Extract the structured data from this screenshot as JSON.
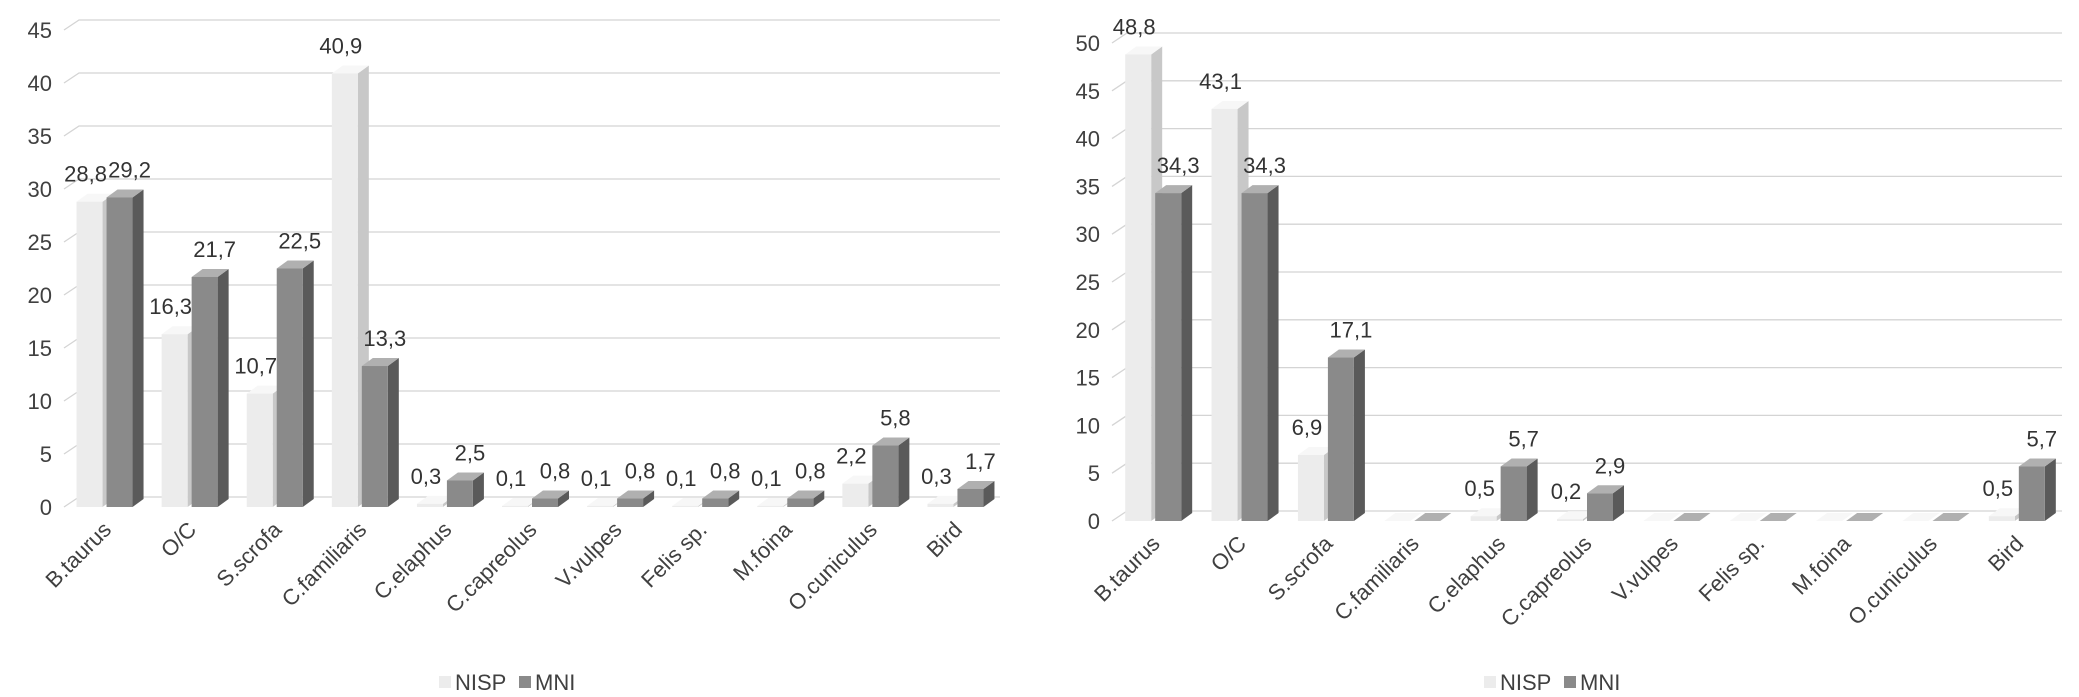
{
  "colors": {
    "nisp_front": "#ececec",
    "nisp_side": "#c8c8c8",
    "nisp_top": "#f7f7f7",
    "mni_front": "#8a8a8a",
    "mni_side": "#5a5a5a",
    "mni_top": "#b0b0b0",
    "grid": "#d4d4d4",
    "axis_text": "#404040"
  },
  "legend": {
    "nisp": "NISP",
    "mni": "MNI"
  },
  "chart_data": [
    {
      "type": "bar",
      "categories": [
        "B.taurus",
        "O/C",
        "S.scrofa",
        "C.familiaris",
        "C.elaphus",
        "C.capreolus",
        "V.vulpes",
        "Felis sp.",
        "M.foina",
        "O.cuniculus",
        "Bird"
      ],
      "series": [
        {
          "name": "NISP",
          "values": [
            28.8,
            16.3,
            10.7,
            40.9,
            0.3,
            0.1,
            0.1,
            0.1,
            0.1,
            2.2,
            0.3
          ],
          "labels": [
            "28,8",
            "16,3",
            "10,7",
            "40,9",
            "0,3",
            "0,1",
            "0,1",
            "0,1",
            "0,1",
            "2,2",
            "0,3"
          ]
        },
        {
          "name": "MNI",
          "values": [
            29.2,
            21.7,
            22.5,
            13.3,
            2.5,
            0.8,
            0.8,
            0.8,
            0.8,
            5.8,
            1.7
          ],
          "labels": [
            "29,2",
            "21,7",
            "22,5",
            "13,3",
            "2,5",
            "0,8",
            "0,8",
            "0,8",
            "0,8",
            "5,8",
            "1,7"
          ]
        }
      ],
      "ylim": [
        0,
        45
      ],
      "yticks": [
        0,
        5,
        10,
        15,
        20,
        25,
        30,
        35,
        40,
        45
      ],
      "grid": true,
      "legend_position": "bottom"
    },
    {
      "type": "bar",
      "categories": [
        "B.taurus",
        "O/C",
        "S.scrofa",
        "C.familiaris",
        "C.elaphus",
        "C.capreolus",
        "V.vulpes",
        "Felis sp.",
        "M.foina",
        "O.cuniculus",
        "Bird"
      ],
      "series": [
        {
          "name": "NISP",
          "values": [
            48.8,
            43.1,
            6.9,
            0,
            0.5,
            0.2,
            0,
            0,
            0,
            0,
            0.5
          ],
          "labels": [
            "48,8",
            "43,1",
            "6,9",
            "",
            "0,5",
            "0,2",
            "",
            "",
            "",
            "",
            "0,5"
          ]
        },
        {
          "name": "MNI",
          "values": [
            34.3,
            34.3,
            17.1,
            0,
            5.7,
            2.9,
            0,
            0,
            0,
            0,
            5.7
          ],
          "labels": [
            "34,3",
            "34,3",
            "17,1",
            "",
            "5,7",
            "2,9",
            "",
            "",
            "",
            "",
            "5,7"
          ]
        }
      ],
      "ylim": [
        0,
        50
      ],
      "yticks": [
        0,
        5,
        10,
        15,
        20,
        25,
        30,
        35,
        40,
        45,
        50
      ],
      "grid": true,
      "legend_position": "bottom"
    }
  ]
}
